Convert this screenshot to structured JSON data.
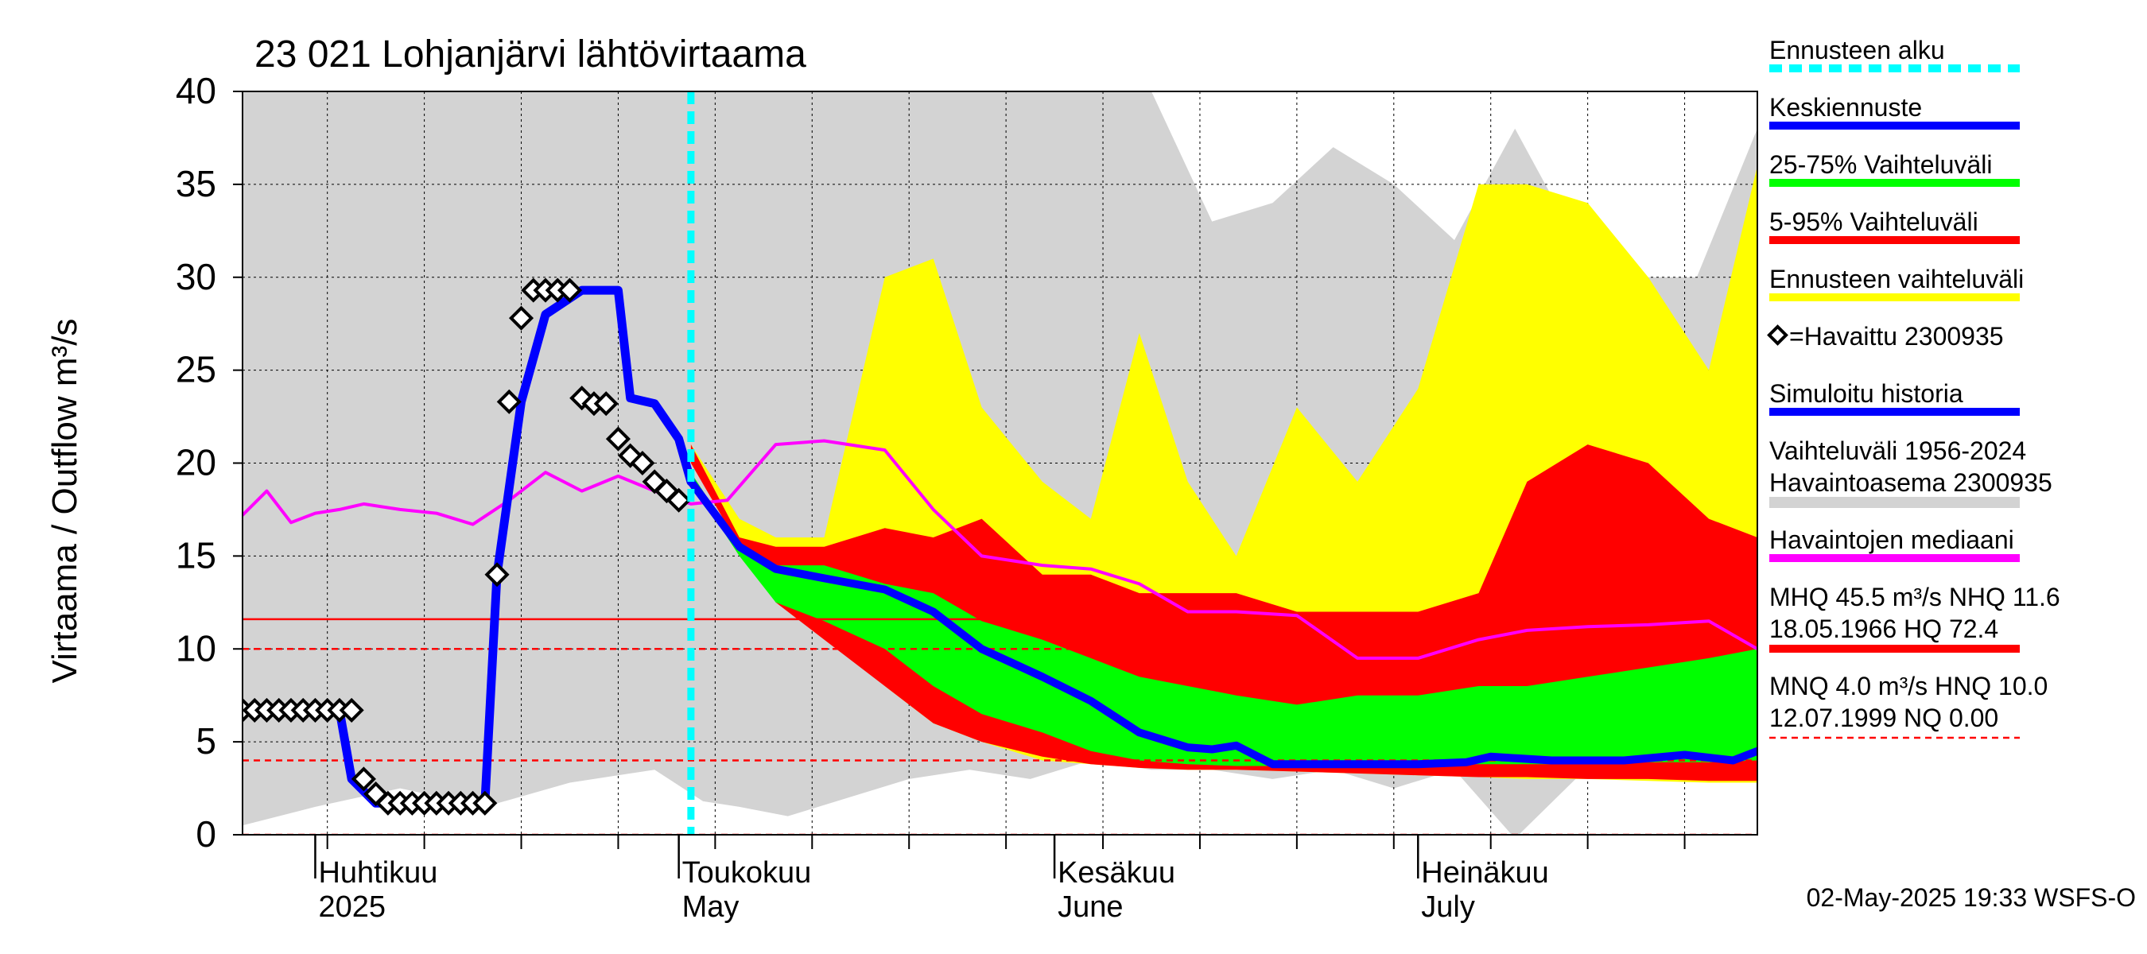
{
  "chart_data": {
    "type": "area",
    "title": "23 021 Lohjanjärvi lähtövirtaama",
    "ylabel": "Virtaama / Outflow    m³/s",
    "ylim": [
      0,
      40
    ],
    "yticks": [
      0,
      5,
      10,
      15,
      20,
      25,
      30,
      35,
      40
    ],
    "x_domain": [
      "2025-03-26",
      "2025-07-29"
    ],
    "month_labels": [
      {
        "fi": "Huhtikuu",
        "en": "2025",
        "date": "2025-04-01"
      },
      {
        "fi": "Toukokuu",
        "en": "May",
        "date": "2025-05-01"
      },
      {
        "fi": "Kesäkuu",
        "en": "June",
        "date": "2025-06-01"
      },
      {
        "fi": "Heinäkuu",
        "en": "July",
        "date": "2025-07-01"
      }
    ],
    "forecast_start": "2025-05-02",
    "colors": {
      "history_range": "#d3d3d3",
      "forecast_range": "#ffff00",
      "p5_95": "#ff0000",
      "p25_75": "#00ff00",
      "mean": "#0000ff",
      "median": "#ff00ff",
      "forecast_line": "#00ffff",
      "ref_line": "#ff0000"
    },
    "series": {
      "history_range": {
        "dates": [
          "2025-03-26",
          "2025-04-01",
          "2025-04-08",
          "2025-04-15",
          "2025-04-22",
          "2025-04-29",
          "2025-05-03",
          "2025-05-06",
          "2025-05-10",
          "2025-05-15",
          "2025-05-20",
          "2025-05-25",
          "2025-05-30",
          "2025-06-04",
          "2025-06-09",
          "2025-06-14",
          "2025-06-19",
          "2025-06-24",
          "2025-06-29",
          "2025-07-04",
          "2025-07-09",
          "2025-07-14",
          "2025-07-19",
          "2025-07-24",
          "2025-07-29"
        ],
        "low": [
          0.5,
          1.5,
          2.5,
          1.5,
          2.8,
          3.5,
          1.8,
          1.5,
          1.0,
          2.0,
          3.0,
          3.5,
          3.0,
          4.0,
          3.5,
          3.5,
          3.0,
          3.5,
          2.5,
          3.5,
          -0.2,
          3.0,
          3.5,
          3.5,
          3.0
        ],
        "high": [
          40,
          40,
          40,
          40,
          40,
          40,
          40,
          40,
          40,
          40,
          40,
          40,
          40,
          40,
          40,
          33,
          34,
          37,
          35,
          32,
          38,
          32,
          30,
          30,
          38
        ]
      },
      "forecast_range": {
        "dates": [
          "2025-05-02",
          "2025-05-06",
          "2025-05-09",
          "2025-05-13",
          "2025-05-18",
          "2025-05-22",
          "2025-05-26",
          "2025-05-31",
          "2025-06-04",
          "2025-06-08",
          "2025-06-12",
          "2025-06-16",
          "2025-06-21",
          "2025-06-26",
          "2025-07-01",
          "2025-07-06",
          "2025-07-10",
          "2025-07-15",
          "2025-07-20",
          "2025-07-25",
          "2025-07-29"
        ],
        "low": [
          20,
          16,
          14,
          11,
          8,
          6,
          5,
          4,
          3.8,
          3.6,
          3.5,
          3.5,
          3.4,
          3.3,
          3.2,
          3.1,
          3,
          3,
          2.9,
          2.8,
          2.8
        ],
        "high": [
          21,
          17,
          16,
          16,
          30,
          31,
          23,
          19,
          17,
          27,
          19,
          15,
          23,
          19,
          24,
          35,
          35,
          34,
          30,
          25,
          36
        ]
      },
      "p5_95": {
        "dates": [
          "2025-05-02",
          "2025-05-06",
          "2025-05-09",
          "2025-05-13",
          "2025-05-18",
          "2025-05-22",
          "2025-05-26",
          "2025-05-31",
          "2025-06-04",
          "2025-06-08",
          "2025-06-12",
          "2025-06-16",
          "2025-06-21",
          "2025-06-26",
          "2025-07-01",
          "2025-07-06",
          "2025-07-10",
          "2025-07-15",
          "2025-07-20",
          "2025-07-25",
          "2025-07-29"
        ],
        "low": [
          20,
          15.5,
          12.5,
          10.5,
          8,
          6,
          5,
          4.2,
          3.8,
          3.6,
          3.5,
          3.5,
          3.4,
          3.3,
          3.2,
          3.1,
          3.1,
          3,
          3,
          2.9,
          2.9
        ],
        "high": [
          21,
          16,
          15.5,
          15.5,
          16.5,
          16,
          17,
          14,
          14,
          13,
          13,
          13,
          12,
          12,
          12,
          13,
          19,
          21,
          20,
          17,
          16
        ]
      },
      "p25_75": {
        "dates": [
          "2025-05-02",
          "2025-05-06",
          "2025-05-09",
          "2025-05-13",
          "2025-05-18",
          "2025-05-22",
          "2025-05-26",
          "2025-05-31",
          "2025-06-04",
          "2025-06-08",
          "2025-06-12",
          "2025-06-16",
          "2025-06-21",
          "2025-06-26",
          "2025-07-01",
          "2025-07-06",
          "2025-07-10",
          "2025-07-15",
          "2025-07-20",
          "2025-07-25",
          "2025-07-29"
        ],
        "low": [
          19,
          15,
          12.5,
          11.5,
          10,
          8,
          6.5,
          5.5,
          4.5,
          4,
          3.8,
          3.7,
          3.7,
          3.7,
          3.8,
          3.8,
          3.8,
          3.8,
          3.9,
          3.9,
          4
        ],
        "high": [
          19.5,
          15.5,
          14.5,
          14.5,
          13.5,
          13,
          11.5,
          10.5,
          9.5,
          8.5,
          8,
          7.5,
          7,
          7.5,
          7.5,
          8,
          8,
          8.5,
          9,
          9.5,
          10
        ]
      },
      "mean": {
        "dates": [
          "2025-05-02",
          "2025-05-06",
          "2025-05-09",
          "2025-05-13",
          "2025-05-18",
          "2025-05-22",
          "2025-05-26",
          "2025-05-31",
          "2025-06-04",
          "2025-06-08",
          "2025-06-12",
          "2025-06-14",
          "2025-06-16",
          "2025-06-19",
          "2025-06-25",
          "2025-07-01",
          "2025-07-05",
          "2025-07-07",
          "2025-07-12",
          "2025-07-18",
          "2025-07-23",
          "2025-07-27",
          "2025-07-29"
        ],
        "values": [
          19,
          15.5,
          14.3,
          13.8,
          13.2,
          12,
          10,
          8.5,
          7.2,
          5.5,
          4.7,
          4.6,
          4.8,
          3.8,
          3.8,
          3.8,
          3.9,
          4.2,
          4,
          4,
          4.3,
          4,
          4.5
        ]
      },
      "simulated_history": {
        "dates": [
          "2025-03-26",
          "2025-04-03",
          "2025-04-04",
          "2025-04-06",
          "2025-04-15",
          "2025-04-16",
          "2025-04-18",
          "2025-04-20",
          "2025-04-23",
          "2025-04-26",
          "2025-04-27",
          "2025-04-29",
          "2025-05-01",
          "2025-05-02"
        ],
        "values": [
          6.7,
          6.7,
          3,
          1.7,
          1.7,
          14,
          23.3,
          28,
          29.3,
          29.3,
          23.5,
          23.2,
          21.3,
          19
        ]
      },
      "observed": {
        "name": "Havaittu 2300935",
        "dates": [
          "2025-03-26",
          "2025-03-27",
          "2025-03-28",
          "2025-03-29",
          "2025-03-30",
          "2025-03-31",
          "2025-04-01",
          "2025-04-02",
          "2025-04-03",
          "2025-04-04",
          "2025-04-05",
          "2025-04-06",
          "2025-04-07",
          "2025-04-08",
          "2025-04-09",
          "2025-04-10",
          "2025-04-11",
          "2025-04-12",
          "2025-04-13",
          "2025-04-14",
          "2025-04-15",
          "2025-04-16",
          "2025-04-17",
          "2025-04-18",
          "2025-04-19",
          "2025-04-20",
          "2025-04-21",
          "2025-04-22",
          "2025-04-23",
          "2025-04-24",
          "2025-04-25",
          "2025-04-26",
          "2025-04-27",
          "2025-04-28",
          "2025-04-29",
          "2025-04-30",
          "2025-05-01"
        ],
        "values": [
          6.7,
          6.7,
          6.7,
          6.7,
          6.7,
          6.7,
          6.7,
          6.7,
          6.7,
          6.7,
          3.0,
          2.2,
          1.7,
          1.7,
          1.7,
          1.7,
          1.7,
          1.7,
          1.7,
          1.7,
          1.7,
          14.0,
          23.3,
          27.8,
          29.3,
          29.3,
          29.3,
          29.3,
          23.5,
          23.2,
          23.2,
          21.3,
          20.4,
          20.0,
          19.0,
          18.5,
          18.0
        ]
      },
      "median": {
        "dates": [
          "2025-03-26",
          "2025-03-28",
          "2025-03-30",
          "2025-04-01",
          "2025-04-03",
          "2025-04-05",
          "2025-04-08",
          "2025-04-11",
          "2025-04-14",
          "2025-04-17",
          "2025-04-20",
          "2025-04-23",
          "2025-04-26",
          "2025-04-29",
          "2025-05-02",
          "2025-05-05",
          "2025-05-09",
          "2025-05-13",
          "2025-05-18",
          "2025-05-22",
          "2025-05-26",
          "2025-05-31",
          "2025-06-04",
          "2025-06-08",
          "2025-06-12",
          "2025-06-16",
          "2025-06-21",
          "2025-06-26",
          "2025-07-01",
          "2025-07-06",
          "2025-07-10",
          "2025-07-15",
          "2025-07-20",
          "2025-07-25",
          "2025-07-29"
        ],
        "values": [
          17.2,
          18.5,
          16.8,
          17.3,
          17.5,
          17.8,
          17.5,
          17.3,
          16.7,
          18,
          19.5,
          18.5,
          19.3,
          18.5,
          17.8,
          18,
          21,
          21.2,
          20.7,
          17.5,
          15,
          14.5,
          14.3,
          13.5,
          12,
          12,
          11.8,
          9.5,
          9.5,
          10.5,
          11,
          11.2,
          11.3,
          11.5,
          10
        ]
      }
    },
    "reference_lines": [
      {
        "value": 11.6,
        "style": "solid"
      },
      {
        "value": 10.0,
        "style": "dashed"
      },
      {
        "value": 4.0,
        "style": "dashed"
      },
      {
        "value": 0.0,
        "style": "dashed"
      }
    ],
    "legend": [
      {
        "label": "Ennusteen alku",
        "color": "#00ffff",
        "style": "dashed"
      },
      {
        "label": "Keskiennuste",
        "color": "#0000ff",
        "style": "solid"
      },
      {
        "label": "25-75% Vaihteluväli",
        "color": "#00ff00",
        "style": "solid"
      },
      {
        "label": "5-95% Vaihteluväli",
        "color": "#ff0000",
        "style": "solid"
      },
      {
        "label": "Ennusteen vaihteluväli",
        "color": "#ffff00",
        "style": "solid"
      },
      {
        "label": "=Havaittu 2300935",
        "color": "#000000",
        "style": "marker"
      },
      {
        "label": "Simuloitu historia",
        "color": "#0000ff",
        "style": "solid"
      },
      {
        "label": "Vaihteluväli 1956-2024",
        "label2": " Havaintoasema 2300935",
        "color": "#d3d3d3",
        "style": "solid"
      },
      {
        "label": "Havaintojen mediaani",
        "color": "#ff00ff",
        "style": "solid"
      },
      {
        "label": "MHQ 45.5 m³/s NHQ 11.6",
        "label2": "18.05.1966 HQ 72.4",
        "color": "#ff0000",
        "style": "solid"
      },
      {
        "label": "MNQ  4.0 m³/s HNQ 10.0",
        "label2": "12.07.1999 NQ 0.00",
        "color": "#ff0000",
        "style": "dashed"
      }
    ],
    "footer": "02-May-2025 19:33 WSFS-O"
  }
}
